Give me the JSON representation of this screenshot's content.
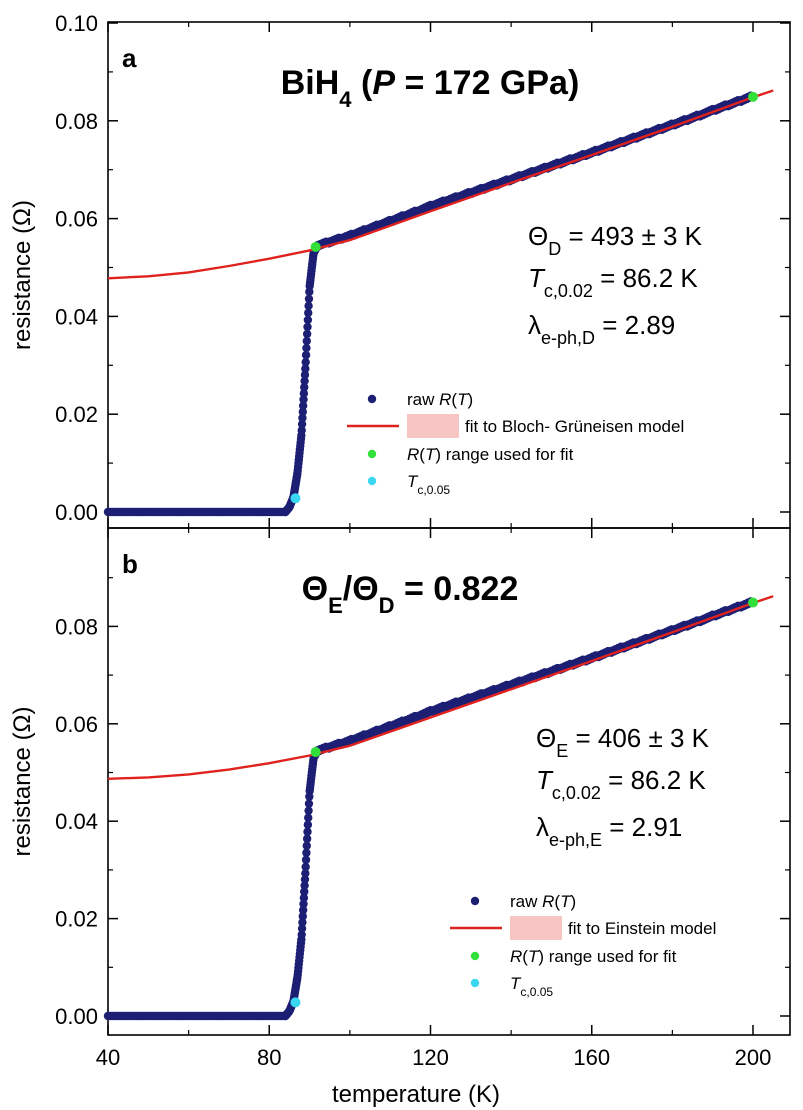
{
  "chart_data": [
    {
      "type": "scatter",
      "panel": "a",
      "title_main": "BiH",
      "title_sub": "4",
      "title_pre": " (",
      "title_P": "P",
      "title_post": " = 172 GPa)",
      "ylabel": "resistance (Ω)",
      "ylim": [
        0,
        0.1
      ],
      "xlim": [
        40,
        210
      ],
      "xticks": [
        "40",
        "80",
        "120",
        "160",
        "200"
      ],
      "yticks": [
        "0.00",
        "0.02",
        "0.04",
        "0.06",
        "0.08",
        "0.10"
      ],
      "annotations": [
        {
          "main": "Θ",
          "sub": "D",
          "rest": " = 493 ± 3 K"
        },
        {
          "main": "T",
          "sub": "c,0.02",
          "rest": " = 86.2 K"
        },
        {
          "main": "λ",
          "sub": "e-ph,D",
          "rest": " = 2.89"
        }
      ],
      "legend": [
        {
          "label_pre": "raw ",
          "label_it": "R",
          "label_post": "(T)"
        },
        {
          "label_pre": "fit to Bloch- Grüneisen model"
        },
        {
          "label_it": "R",
          "label_post": "(T) range used for fit"
        },
        {
          "label_it": "T",
          "label_sub": "c,0.05"
        }
      ],
      "series": [
        {
          "name": "raw R(T)",
          "color": "#1c1f73",
          "x": [
            40,
            60,
            84,
            85,
            86,
            87,
            88,
            89,
            90,
            91,
            92,
            100,
            120,
            140,
            160,
            180,
            200
          ],
          "y": [
            0.0,
            0.0,
            0.0,
            0.001,
            0.003,
            0.008,
            0.016,
            0.03,
            0.046,
            0.053,
            0.0545,
            0.0565,
            0.0625,
            0.068,
            0.0735,
            0.0792,
            0.085
          ]
        },
        {
          "name": "fit to Bloch- Grüneisen model",
          "color": "#e0221e",
          "x": [
            40,
            50,
            60,
            70,
            80,
            90,
            100,
            120,
            140,
            160,
            180,
            200,
            205
          ],
          "y": [
            0.0478,
            0.0482,
            0.049,
            0.0503,
            0.0518,
            0.0535,
            0.0556,
            0.0615,
            0.0673,
            0.073,
            0.0788,
            0.0848,
            0.0862
          ]
        },
        {
          "name": "R(T) range used for fit",
          "color": "#33e03a",
          "x": [
            91.5,
            200
          ],
          "y": [
            0.0542,
            0.0849
          ]
        },
        {
          "name": "Tc,0.05",
          "color": "#3ad7f0",
          "x": [
            86.5
          ],
          "y": [
            0.0028
          ]
        }
      ]
    },
    {
      "type": "scatter",
      "panel": "b",
      "title_main": "Θ",
      "title_sub": "E",
      "title_mid": "/Θ",
      "title_sub2": "D",
      "title_post": " = 0.822",
      "xlabel": "temperature (K)",
      "ylabel": "resistance (Ω)",
      "ylim": [
        0,
        0.1
      ],
      "xlim": [
        40,
        210
      ],
      "xticks": [
        "40",
        "80",
        "120",
        "160",
        "200"
      ],
      "yticks": [
        "0.00",
        "0.02",
        "0.04",
        "0.06",
        "0.08"
      ],
      "annotations": [
        {
          "main": "Θ",
          "sub": "E",
          "rest": " = 406 ± 3 K"
        },
        {
          "main": "T",
          "sub": "c,0.02",
          "rest": " = 86.2 K"
        },
        {
          "main": "λ",
          "sub": "e-ph,E",
          "rest": " = 2.91"
        }
      ],
      "legend": [
        {
          "label_pre": "raw ",
          "label_it": "R",
          "label_post": "(T)"
        },
        {
          "label_pre": "fit to Einstein model"
        },
        {
          "label_it": "R",
          "label_post": "(T) range used for fit"
        },
        {
          "label_it": "T",
          "label_sub": "c,0.05"
        }
      ],
      "series": [
        {
          "name": "raw R(T)",
          "color": "#1c1f73",
          "x": [
            40,
            60,
            84,
            85,
            86,
            87,
            88,
            89,
            90,
            91,
            92,
            100,
            120,
            140,
            160,
            180,
            200
          ],
          "y": [
            0.0,
            0.0,
            0.0,
            0.001,
            0.003,
            0.008,
            0.016,
            0.03,
            0.046,
            0.053,
            0.0545,
            0.0565,
            0.0625,
            0.068,
            0.0735,
            0.0792,
            0.085
          ]
        },
        {
          "name": "fit to Einstein model",
          "color": "#e0221e",
          "x": [
            40,
            50,
            60,
            70,
            80,
            90,
            100,
            120,
            140,
            160,
            180,
            200,
            205
          ],
          "y": [
            0.0487,
            0.049,
            0.0496,
            0.0506,
            0.0519,
            0.0535,
            0.0555,
            0.0613,
            0.0671,
            0.0729,
            0.0788,
            0.0848,
            0.0862
          ]
        },
        {
          "name": "R(T) range used for fit",
          "color": "#33e03a",
          "x": [
            91.5,
            200
          ],
          "y": [
            0.0542,
            0.0849
          ]
        },
        {
          "name": "Tc,0.05",
          "color": "#3ad7f0",
          "x": [
            86.5
          ],
          "y": [
            0.0028
          ]
        }
      ]
    }
  ]
}
